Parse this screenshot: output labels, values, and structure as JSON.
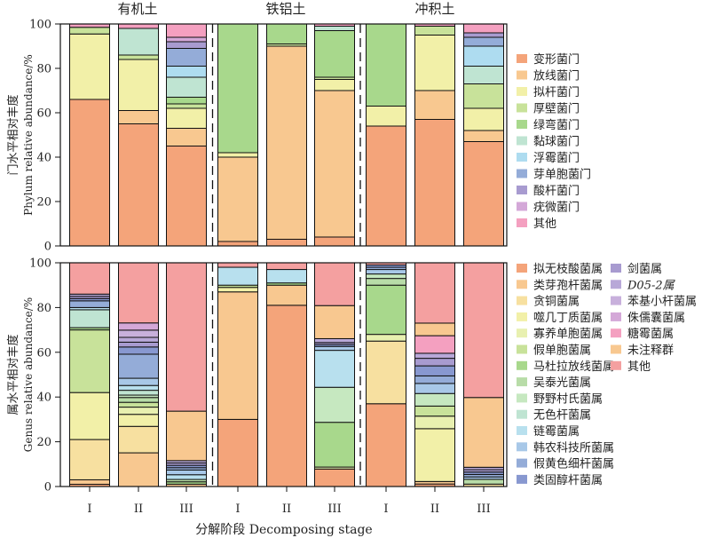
{
  "chart_data": [
    {
      "type": "bar",
      "stacked": true,
      "ylabel_lines": [
        "门水平相对丰度",
        "Phylum relative abundance/%"
      ],
      "ylim": [
        0,
        100
      ],
      "yticks": [
        "0",
        "20",
        "40",
        "60",
        "80",
        "100"
      ],
      "groups": [
        "有机土",
        "铁铝土",
        "冲积土"
      ],
      "categories": [
        "I",
        "II",
        "III",
        "I",
        "II",
        "III",
        "I",
        "II",
        "III"
      ],
      "legend": [
        "变形菌门",
        "放线菌门",
        "拟杆菌门",
        "厚壁菌门",
        "绿弯菌门",
        "黏球菌门",
        "浮霉菌门",
        "芽单胞菌门",
        "酸杆菌门",
        "疣微菌门",
        "其他"
      ],
      "colors": [
        "#F4A47A",
        "#F8C890",
        "#F2F0A8",
        "#C8E29A",
        "#A8D88C",
        "#BFE4D2",
        "#AEDCF0",
        "#94ACD8",
        "#A89BD0",
        "#D4A8D8",
        "#F4A0C0"
      ],
      "values": [
        [
          66,
          0,
          29.5,
          3,
          0,
          0,
          0,
          0,
          0,
          0,
          1.5
        ],
        [
          55,
          6,
          23,
          2,
          0,
          12,
          0,
          0,
          0,
          0,
          2
        ],
        [
          45,
          8,
          9,
          2,
          3,
          9,
          5,
          8,
          3,
          2,
          6
        ],
        [
          2,
          38,
          2,
          0,
          58,
          0,
          0,
          0,
          0,
          0,
          0
        ],
        [
          3,
          87,
          0,
          1,
          9,
          0,
          0,
          0,
          0,
          0,
          0
        ],
        [
          4,
          66,
          5,
          1,
          21,
          2,
          0,
          0,
          0,
          0,
          1
        ],
        [
          54,
          0,
          9,
          0,
          37,
          0,
          0,
          0,
          0,
          0,
          0
        ],
        [
          57,
          13,
          25,
          4,
          0,
          0,
          0,
          0,
          0,
          0,
          1
        ],
        [
          47,
          5,
          10,
          11,
          0,
          8,
          9,
          4,
          2,
          0,
          4
        ]
      ]
    },
    {
      "type": "bar",
      "stacked": true,
      "xlabel": "分解阶段 Decomposing stage",
      "ylabel_lines": [
        "属水平相对丰度",
        "Genus relative abundance/%"
      ],
      "ylim": [
        0,
        100
      ],
      "yticks": [
        "0",
        "20",
        "40",
        "60",
        "80",
        "100"
      ],
      "categories": [
        "I",
        "II",
        "III",
        "I",
        "II",
        "III",
        "I",
        "II",
        "III"
      ],
      "legend": [
        "拟无枝酸菌属",
        "类芽孢杆菌属",
        "贪铜菌属",
        "噬几丁质菌属",
        "寡养单胞菌属",
        "假单胞菌属",
        "马杜拉放线菌属",
        "吴泰光菌属",
        "野野村氏菌属",
        "无色杆菌属",
        "链霉菌属",
        "韩农科技所菌属",
        "假黄色细杆菌属",
        "类固醇杆菌属",
        "剑菌属",
        "D05-2属",
        "苯基小杆菌属",
        "侏儒囊菌属",
        "糖霉菌属",
        "未注释群",
        "其他"
      ],
      "legend_italic": [
        15
      ],
      "colors": [
        "#F4A47A",
        "#F8C890",
        "#F7E0A0",
        "#F2F0A8",
        "#E8F0B0",
        "#C8E29A",
        "#A8D88C",
        "#B8DCA8",
        "#C6E8C0",
        "#BFE4D2",
        "#B8E0EE",
        "#A8C8E8",
        "#94ACD8",
        "#8898D0",
        "#A89BD0",
        "#B8A8D8",
        "#C8B0DC",
        "#D4A8D8",
        "#F4A0C0",
        "#F8C890",
        "#F4A0A0"
      ],
      "values": [
        [
          1,
          2,
          18,
          21,
          0,
          28,
          1,
          0,
          0,
          8,
          1,
          0,
          3,
          1,
          1,
          1,
          0,
          0,
          0,
          0,
          14
        ],
        [
          0,
          14,
          11,
          5,
          3,
          2,
          0,
          2,
          1,
          2,
          2,
          3,
          10,
          3,
          2,
          2,
          3,
          3,
          0,
          0,
          25
        ],
        [
          0,
          1,
          0,
          0,
          0,
          0,
          1,
          1,
          0,
          0,
          2,
          2,
          1,
          1,
          1,
          1,
          0,
          0,
          0,
          21,
          63
        ],
        [
          30,
          57,
          0,
          2,
          0,
          1,
          0,
          0,
          0,
          0,
          8,
          0,
          0,
          0,
          0,
          0,
          0,
          0,
          0,
          0,
          2
        ],
        [
          81,
          9,
          0,
          0,
          0,
          0,
          1,
          0,
          0,
          0,
          6,
          0,
          0,
          0,
          0,
          0,
          0,
          0,
          0,
          0,
          3
        ],
        [
          9,
          0,
          0,
          0,
          1,
          0,
          23,
          0,
          18,
          0,
          19,
          2,
          0,
          1,
          1,
          2,
          0,
          0,
          0,
          17,
          22
        ],
        [
          37,
          0,
          28,
          0,
          3,
          0,
          22,
          3,
          2,
          0,
          0,
          2,
          1,
          1,
          0,
          0,
          0,
          0,
          0,
          0,
          1
        ],
        [
          1,
          1,
          0,
          21,
          5,
          4,
          0,
          0,
          5,
          0,
          0,
          4,
          3,
          4,
          3,
          2,
          0,
          0,
          7,
          5,
          24
        ],
        [
          0,
          0,
          1,
          0,
          0,
          0,
          0,
          2,
          0,
          0,
          0,
          1,
          1,
          1,
          1,
          1,
          0,
          0,
          0,
          29,
          56
        ]
      ]
    }
  ]
}
